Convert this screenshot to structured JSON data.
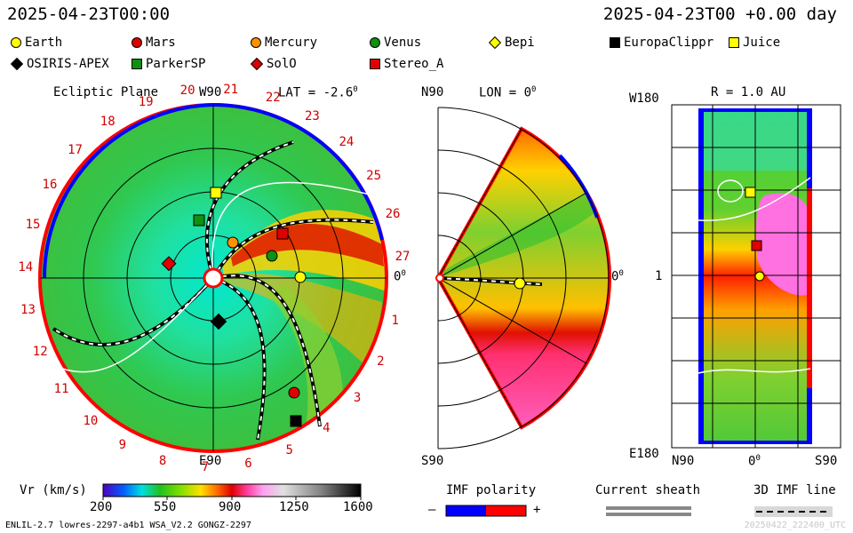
{
  "header": {
    "left_time": "2025-04-23T00:00",
    "right_time": "2025-04-23T00 +0.00 day"
  },
  "legend": [
    {
      "label": "Earth",
      "shape": "circle",
      "color": "#ffff00"
    },
    {
      "label": "Mars",
      "shape": "circle",
      "color": "#e00000"
    },
    {
      "label": "Mercury",
      "shape": "circle",
      "color": "#ff9000"
    },
    {
      "label": "Venus",
      "shape": "circle",
      "color": "#109010"
    },
    {
      "label": "Bepi",
      "shape": "diamond",
      "color": "#ffff00"
    },
    {
      "label": "EuropaClippr",
      "shape": "square",
      "color": "#000000"
    },
    {
      "label": "Juice",
      "shape": "square",
      "color": "#ffff00"
    },
    {
      "label": "OSIRIS-APEX",
      "shape": "diamond",
      "color": "#000000"
    },
    {
      "label": "ParkerSP",
      "shape": "square",
      "color": "#109010"
    },
    {
      "label": "SolO",
      "shape": "diamond",
      "color": "#e00000"
    },
    {
      "label": "Stereo_A",
      "shape": "square",
      "color": "#e00000"
    }
  ],
  "ecliptic": {
    "title": "Ecliptic Plane",
    "lat": "LAT = -2.6",
    "lat_sup": "0",
    "top_label": "W90",
    "bottom_label": "E90",
    "right_label": "0",
    "right_sup": "0",
    "carrington": [
      "1",
      "2",
      "3",
      "4",
      "5",
      "6",
      "7",
      "8",
      "9",
      "10",
      "11",
      "12",
      "13",
      "14",
      "15",
      "16",
      "17",
      "18",
      "19",
      "20",
      "21",
      "22",
      "23",
      "24",
      "25",
      "26",
      "27"
    ]
  },
  "meridional": {
    "top_left": "N90",
    "lon": "LON = 0",
    "lon_sup": "0",
    "bottom_left": "S90",
    "right_label": "0",
    "right_sup": "0"
  },
  "radial": {
    "title": "R = 1.0 AU",
    "top_left": "W180",
    "mid_left": "1",
    "bottom_left": "E180",
    "x_left": "N90",
    "x_mid": "0",
    "x_mid_sup": "0",
    "x_right": "S90"
  },
  "colorbar": {
    "label": "Vr (km/s)",
    "ticks": [
      "200",
      "550",
      "900",
      "1250",
      "1600"
    ]
  },
  "imf": {
    "label": "IMF polarity",
    "minus": "–",
    "plus": "+",
    "neg_color": "#0000ff",
    "pos_color": "#ff0000"
  },
  "sheath": {
    "label": "Current sheath"
  },
  "imf3d": {
    "label": "3D IMF line"
  },
  "footer": {
    "left": "ENLIL-2.7 lowres-2297-a4b1 WSA_V2.2 GONGZ-2297",
    "right": "20250422_222400_UTC"
  },
  "chart_data": {
    "type": "heatmap",
    "quantity": "Vr (km/s)",
    "vrange": [
      200,
      1600
    ],
    "colorbar_ticks": [
      200,
      550,
      900,
      1250,
      1600
    ],
    "bodies": [
      "Earth",
      "Mars",
      "Mercury",
      "Venus",
      "Bepi",
      "EuropaClippr",
      "Juice",
      "OSIRIS-APEX",
      "ParkerSP",
      "SolO",
      "Stereo_A"
    ]
  }
}
